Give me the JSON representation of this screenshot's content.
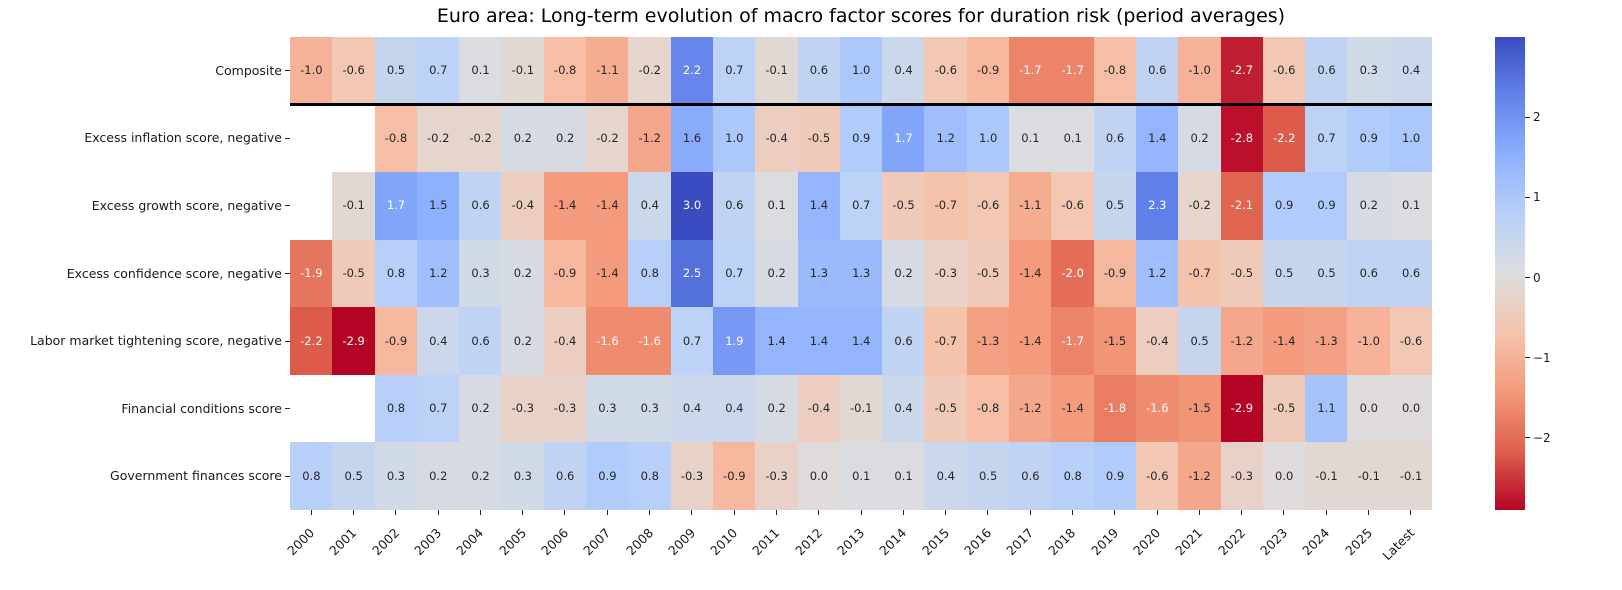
{
  "chart_data": {
    "type": "heatmap",
    "title": "Euro area: Long-term evolution of macro factor scores for duration risk (period averages)",
    "columns": [
      "2000",
      "2001",
      "2002",
      "2003",
      "2004",
      "2005",
      "2006",
      "2007",
      "2008",
      "2009",
      "2010",
      "2011",
      "2012",
      "2013",
      "2014",
      "2015",
      "2016",
      "2017",
      "2018",
      "2019",
      "2020",
      "2021",
      "2022",
      "2023",
      "2024",
      "2025",
      "Latest"
    ],
    "rows": [
      {
        "label": "Composite",
        "values": [
          -1.0,
          -0.6,
          0.5,
          0.7,
          0.1,
          -0.1,
          -0.8,
          -1.1,
          -0.2,
          2.2,
          0.7,
          -0.1,
          0.6,
          1.0,
          0.4,
          -0.6,
          -0.9,
          -1.7,
          -1.7,
          -0.8,
          0.6,
          -1.0,
          -2.7,
          -0.6,
          0.6,
          0.3,
          0.4
        ]
      },
      {
        "label": "Excess inflation score, negative",
        "values": [
          null,
          null,
          -0.8,
          -0.2,
          -0.2,
          0.2,
          0.2,
          -0.2,
          -1.2,
          1.6,
          1.0,
          -0.4,
          -0.5,
          0.9,
          1.7,
          1.2,
          1.0,
          0.1,
          0.1,
          0.6,
          1.4,
          0.2,
          -2.8,
          -2.2,
          0.7,
          0.9,
          1.0
        ]
      },
      {
        "label": "Excess growth score, negative",
        "values": [
          null,
          -0.1,
          1.7,
          1.5,
          0.6,
          -0.4,
          -1.4,
          -1.4,
          0.4,
          3.0,
          0.6,
          0.1,
          1.4,
          0.7,
          -0.5,
          -0.7,
          -0.6,
          -1.1,
          -0.6,
          0.5,
          2.3,
          -0.2,
          -2.1,
          0.9,
          0.9,
          0.2,
          0.1
        ]
      },
      {
        "label": "Excess confidence score, negative",
        "values": [
          -1.9,
          -0.5,
          0.8,
          1.2,
          0.3,
          0.2,
          -0.9,
          -1.4,
          0.8,
          2.5,
          0.7,
          0.2,
          1.3,
          1.3,
          0.2,
          -0.3,
          -0.5,
          -1.4,
          -2.0,
          -0.9,
          1.2,
          -0.7,
          -0.5,
          0.5,
          0.5,
          0.6,
          0.6
        ]
      },
      {
        "label": "Labor market tightening score, negative",
        "values": [
          -2.2,
          -2.9,
          -0.9,
          0.4,
          0.6,
          0.2,
          -0.4,
          -1.6,
          -1.6,
          0.7,
          1.9,
          1.4,
          1.4,
          1.4,
          0.6,
          -0.7,
          -1.3,
          -1.4,
          -1.7,
          -1.5,
          -0.4,
          0.5,
          -1.2,
          -1.4,
          -1.3,
          -1.0,
          -0.6
        ]
      },
      {
        "label": "Financial conditions score",
        "values": [
          null,
          null,
          0.8,
          0.7,
          0.2,
          -0.3,
          -0.3,
          0.3,
          0.3,
          0.4,
          0.4,
          0.2,
          -0.4,
          -0.1,
          0.4,
          -0.5,
          -0.8,
          -1.2,
          -1.4,
          -1.8,
          -1.6,
          -1.5,
          -2.9,
          -0.5,
          1.1,
          -0.0,
          -0.0
        ]
      },
      {
        "label": "Government finances score",
        "values": [
          0.8,
          0.5,
          0.3,
          0.2,
          0.2,
          0.3,
          0.6,
          0.9,
          0.8,
          -0.3,
          -0.9,
          -0.3,
          -0.0,
          0.1,
          0.1,
          0.4,
          0.5,
          0.6,
          0.8,
          0.9,
          -0.6,
          -1.2,
          -0.3,
          -0.0,
          -0.1,
          -0.1,
          -0.1
        ]
      }
    ],
    "value_format_decimals": 1,
    "separator_after_row": 0,
    "colormap": "coolwarm_r",
    "vmin": -2.9,
    "vmax": 3.0,
    "colorbar_tick_labels": [
      "2",
      "1",
      "0",
      "−1",
      "−2"
    ],
    "colorbar_tick_values": [
      2,
      1,
      0,
      -1,
      -2
    ],
    "legend_position": "right",
    "grid": false
  }
}
